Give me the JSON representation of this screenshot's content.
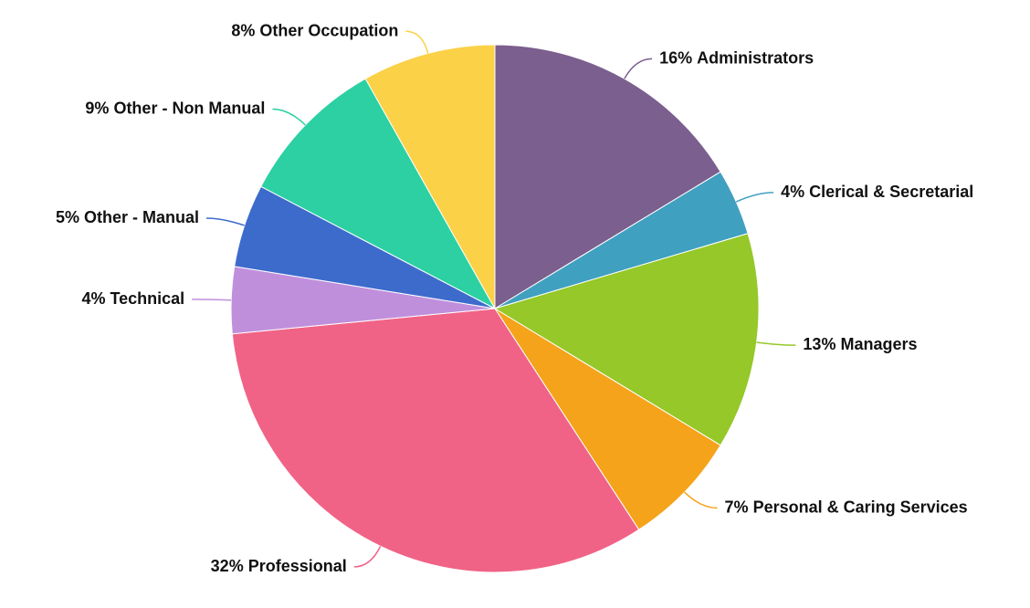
{
  "chart_data": {
    "type": "pie",
    "categories": [
      "Administrators",
      "Clerical & Secretarial",
      "Managers",
      "Personal & Caring Services",
      "Professional",
      "Technical",
      "Other - Manual",
      "Other - Non Manual",
      "Other Occupation"
    ],
    "values": [
      16,
      4,
      13,
      7,
      32,
      4,
      5,
      9,
      8
    ],
    "value_labels": [
      "16%",
      "4%",
      "13%",
      "7%",
      "32%",
      "4%",
      "5%",
      "9%",
      "8%"
    ],
    "colors": [
      "#7b5f8e",
      "#40a0c0",
      "#95c828",
      "#f5a31a",
      "#f06386",
      "#c08fdc",
      "#3d6bcc",
      "#2cd0a2",
      "#fbd147"
    ]
  }
}
